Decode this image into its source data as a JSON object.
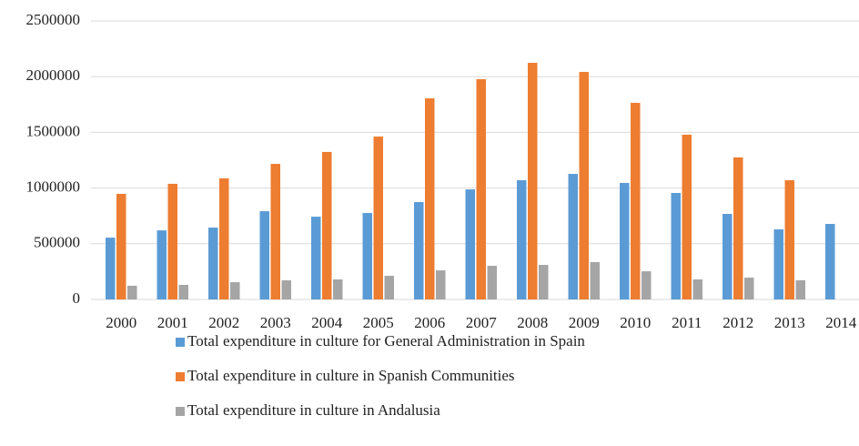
{
  "chart_data": {
    "type": "bar",
    "categories": [
      "2000",
      "2001",
      "2002",
      "2003",
      "2004",
      "2005",
      "2006",
      "2007",
      "2008",
      "2009",
      "2010",
      "2011",
      "2012",
      "2013",
      "2014"
    ],
    "series": [
      {
        "name": "Total expenditure in culture for General Administration in Spain",
        "color": "#5b9bd5",
        "values": [
          555000,
          620000,
          645000,
          792000,
          743000,
          776000,
          874000,
          988000,
          1070000,
          1127000,
          1046000,
          956000,
          768000,
          629000,
          678000
        ]
      },
      {
        "name": "Total expenditure in culture in Spanish Communities",
        "color": "#ed7d31",
        "values": [
          948000,
          1038000,
          1087000,
          1217000,
          1324000,
          1462000,
          1805000,
          1977000,
          2124000,
          2042000,
          1765000,
          1479000,
          1275000,
          1070000,
          null
        ]
      },
      {
        "name": "Total expenditure in culture in Andalusia",
        "color": "#a5a5a5",
        "values": [
          123000,
          131000,
          155000,
          172000,
          180000,
          212000,
          261000,
          302000,
          310000,
          335000,
          253000,
          180000,
          196000,
          172000,
          null
        ]
      }
    ],
    "ylim": [
      0,
      2500000
    ],
    "yticks": [
      0,
      500000,
      1000000,
      1500000,
      2000000,
      2500000
    ],
    "grid": true,
    "legend": "bottom"
  }
}
